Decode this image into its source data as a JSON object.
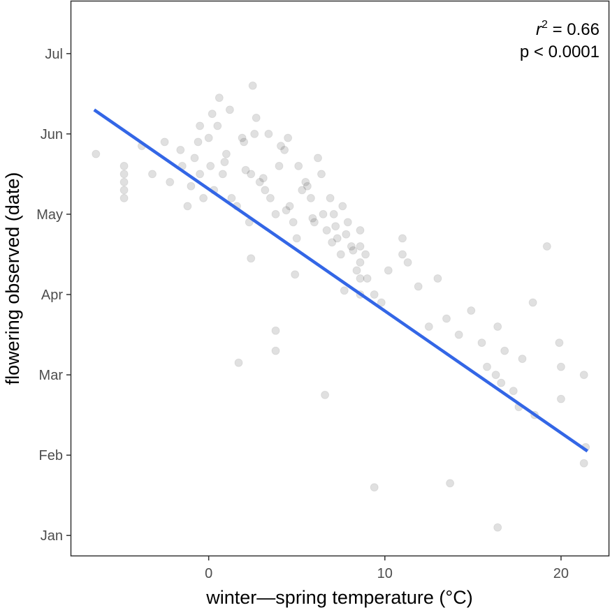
{
  "chart_data": {
    "type": "scatter",
    "title": "",
    "xlabel": "winter—spring temperature (°C)",
    "ylabel": "flowering observed (date)",
    "xlim": [
      -7.8,
      22.7
    ],
    "ylim": [
      -0.25,
      6.65
    ],
    "x_ticks": [
      0,
      10,
      20
    ],
    "x_tick_labels": [
      "0",
      "10",
      "20"
    ],
    "y_ticks": [
      0,
      1,
      2,
      3,
      4,
      5,
      6
    ],
    "y_tick_labels": [
      "Jan",
      "Feb",
      "Mar",
      "Apr",
      "May",
      "Jun",
      "Jul"
    ],
    "y_encoding": "months after Jan 1 (Jan = 0 … Jul = 6)",
    "grid": false,
    "point_color": "#000000",
    "point_opacity": 0.12,
    "line_color": "#3366e6",
    "fit_line": {
      "x": [
        -6.5,
        21.5
      ],
      "y": [
        5.3,
        1.05
      ]
    },
    "annotation": {
      "r2_symbol": "r",
      "r2_exponent": "2",
      "r2_value": " = 0.66",
      "p_text": "p < 0.0001"
    },
    "points": {
      "x": [
        -6.4,
        -4.8,
        -4.8,
        -4.8,
        -4.8,
        -4.8,
        -3.8,
        -3.2,
        -2.5,
        -2.2,
        -1.6,
        -1.5,
        -1.2,
        -1.0,
        -0.8,
        -0.6,
        -0.5,
        -0.3,
        0.1,
        0.3,
        0.5,
        0.8,
        1.0,
        1.3,
        1.6,
        2.0,
        2.3,
        2.4,
        2.5,
        2.6,
        2.9,
        3.2,
        3.5,
        3.8,
        4.0,
        4.3,
        4.6,
        4.8,
        5.0,
        5.3,
        5.5,
        5.8,
        6.0,
        6.2,
        6.4,
        6.7,
        6.9,
        7.1,
        7.3,
        7.5,
        7.6,
        7.9,
        8.1,
        8.4,
        8.6,
        8.6,
        8.6,
        8.6,
        8.6,
        8.9,
        9.0,
        9.4,
        9.8,
        10.2,
        11.0,
        11.0,
        11.3,
        11.9,
        12.5,
        13.0,
        13.5,
        14.2,
        14.9,
        15.5,
        15.8,
        16.3,
        16.4,
        16.6,
        16.8,
        17.3,
        17.6,
        17.8,
        18.4,
        18.5,
        19.2,
        19.9,
        20.0,
        20.0,
        21.3,
        21.4,
        21.3,
        3.8,
        3.8,
        1.7,
        6.6,
        9.4,
        13.7,
        16.4,
        -0.5,
        0.2,
        0.6,
        1.2,
        1.9,
        2.7,
        3.4,
        4.1,
        4.5,
        5.1,
        5.6,
        6.5,
        7.2,
        7.8,
        8.2,
        0.0,
        0.9,
        2.1,
        3.1,
        4.4,
        5.9,
        7.0,
        2.4,
        4.9,
        7.7
      ],
      "y": [
        4.75,
        4.3,
        4.4,
        4.5,
        4.6,
        4.2,
        4.85,
        4.5,
        4.9,
        4.4,
        4.8,
        4.6,
        4.1,
        4.35,
        4.7,
        4.9,
        4.5,
        4.2,
        4.6,
        4.3,
        5.1,
        4.5,
        4.75,
        4.2,
        4.1,
        4.9,
        3.9,
        4.5,
        5.6,
        5.0,
        4.4,
        4.3,
        4.2,
        4.0,
        4.6,
        4.8,
        4.1,
        3.9,
        3.7,
        4.3,
        4.4,
        4.2,
        3.9,
        4.7,
        4.5,
        3.8,
        4.2,
        4.0,
        3.7,
        3.5,
        4.1,
        3.9,
        3.6,
        3.3,
        3.0,
        3.2,
        3.4,
        3.6,
        3.8,
        3.5,
        3.2,
        3.0,
        2.9,
        3.3,
        3.5,
        3.7,
        3.4,
        3.1,
        2.6,
        3.2,
        2.7,
        2.5,
        2.8,
        2.4,
        2.1,
        2.0,
        2.6,
        1.9,
        2.3,
        1.8,
        1.6,
        2.2,
        2.9,
        1.5,
        3.6,
        2.4,
        1.7,
        2.1,
        2.0,
        1.1,
        0.9,
        2.55,
        2.3,
        2.15,
        1.75,
        0.6,
        0.65,
        0.1,
        5.1,
        5.25,
        5.45,
        5.3,
        4.95,
        5.2,
        5.0,
        4.85,
        4.95,
        4.6,
        4.35,
        4.0,
        3.85,
        3.75,
        3.55,
        4.95,
        4.65,
        4.55,
        4.45,
        4.05,
        3.95,
        3.65,
        3.45,
        3.25,
        3.05
      ]
    }
  }
}
